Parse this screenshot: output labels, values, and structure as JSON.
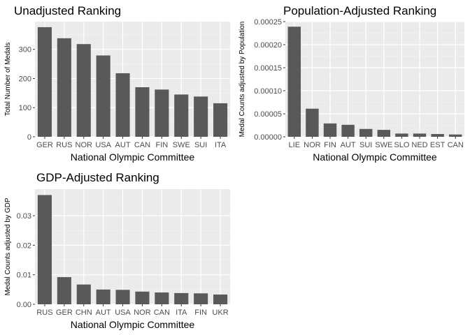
{
  "chart_data": [
    {
      "type": "bar",
      "title": "Unadjusted Ranking",
      "xlabel": "National Olympic Committee",
      "ylabel": "Total Number of Medals",
      "categories": [
        "GER",
        "RUS",
        "NOR",
        "USA",
        "AUT",
        "CAN",
        "FIN",
        "SWE",
        "SUI",
        "ITA"
      ],
      "values": [
        376,
        338,
        318,
        279,
        218,
        170,
        162,
        145,
        138,
        115
      ],
      "ylim": [
        0,
        395
      ],
      "yticks": [
        0,
        100,
        200,
        300
      ],
      "ytick_labels": [
        "0",
        "100",
        "200",
        "300"
      ],
      "bar_color": "#595959",
      "panel_color": "#ebebeb"
    },
    {
      "type": "bar",
      "title": "Population-Adjusted Ranking",
      "xlabel": "National Olympic Committee",
      "ylabel": "Medal Counts adjusted by Population",
      "categories": [
        "LIE",
        "NOR",
        "FIN",
        "AUT",
        "SUI",
        "SWE",
        "SLO",
        "NED",
        "EST",
        "CAN"
      ],
      "values": [
        0.000239,
        6.1e-05,
        2.9e-05,
        2.6e-05,
        1.7e-05,
        1.5e-05,
        7e-06,
        7e-06,
        6e-06,
        5e-06
      ],
      "ylim": [
        0,
        0.00025
      ],
      "yticks": [
        0,
        5e-05,
        0.0001,
        0.00015,
        0.0002,
        0.00025
      ],
      "ytick_labels": [
        "0.00000",
        "0.00005",
        "0.00010",
        "0.00015",
        "0.00020",
        "0.00025"
      ],
      "bar_color": "#595959",
      "panel_color": "#ebebeb"
    },
    {
      "type": "bar",
      "title": "GDP-Adjusted Ranking",
      "xlabel": "National Olympic Committee",
      "ylabel": "Medal Counts adjusted by GDP",
      "categories": [
        "RUS",
        "GER",
        "CHN",
        "AUT",
        "USA",
        "NOR",
        "CAN",
        "ITA",
        "FIN",
        "UKR"
      ],
      "values": [
        0.037,
        0.0092,
        0.0067,
        0.005,
        0.0049,
        0.0043,
        0.004,
        0.0038,
        0.0037,
        0.0033
      ],
      "ylim": [
        0,
        0.039
      ],
      "yticks": [
        0,
        0.01,
        0.02,
        0.03
      ],
      "ytick_labels": [
        "0.00",
        "0.01",
        "0.02",
        "0.03"
      ],
      "bar_color": "#595959",
      "panel_color": "#ebebeb"
    }
  ]
}
